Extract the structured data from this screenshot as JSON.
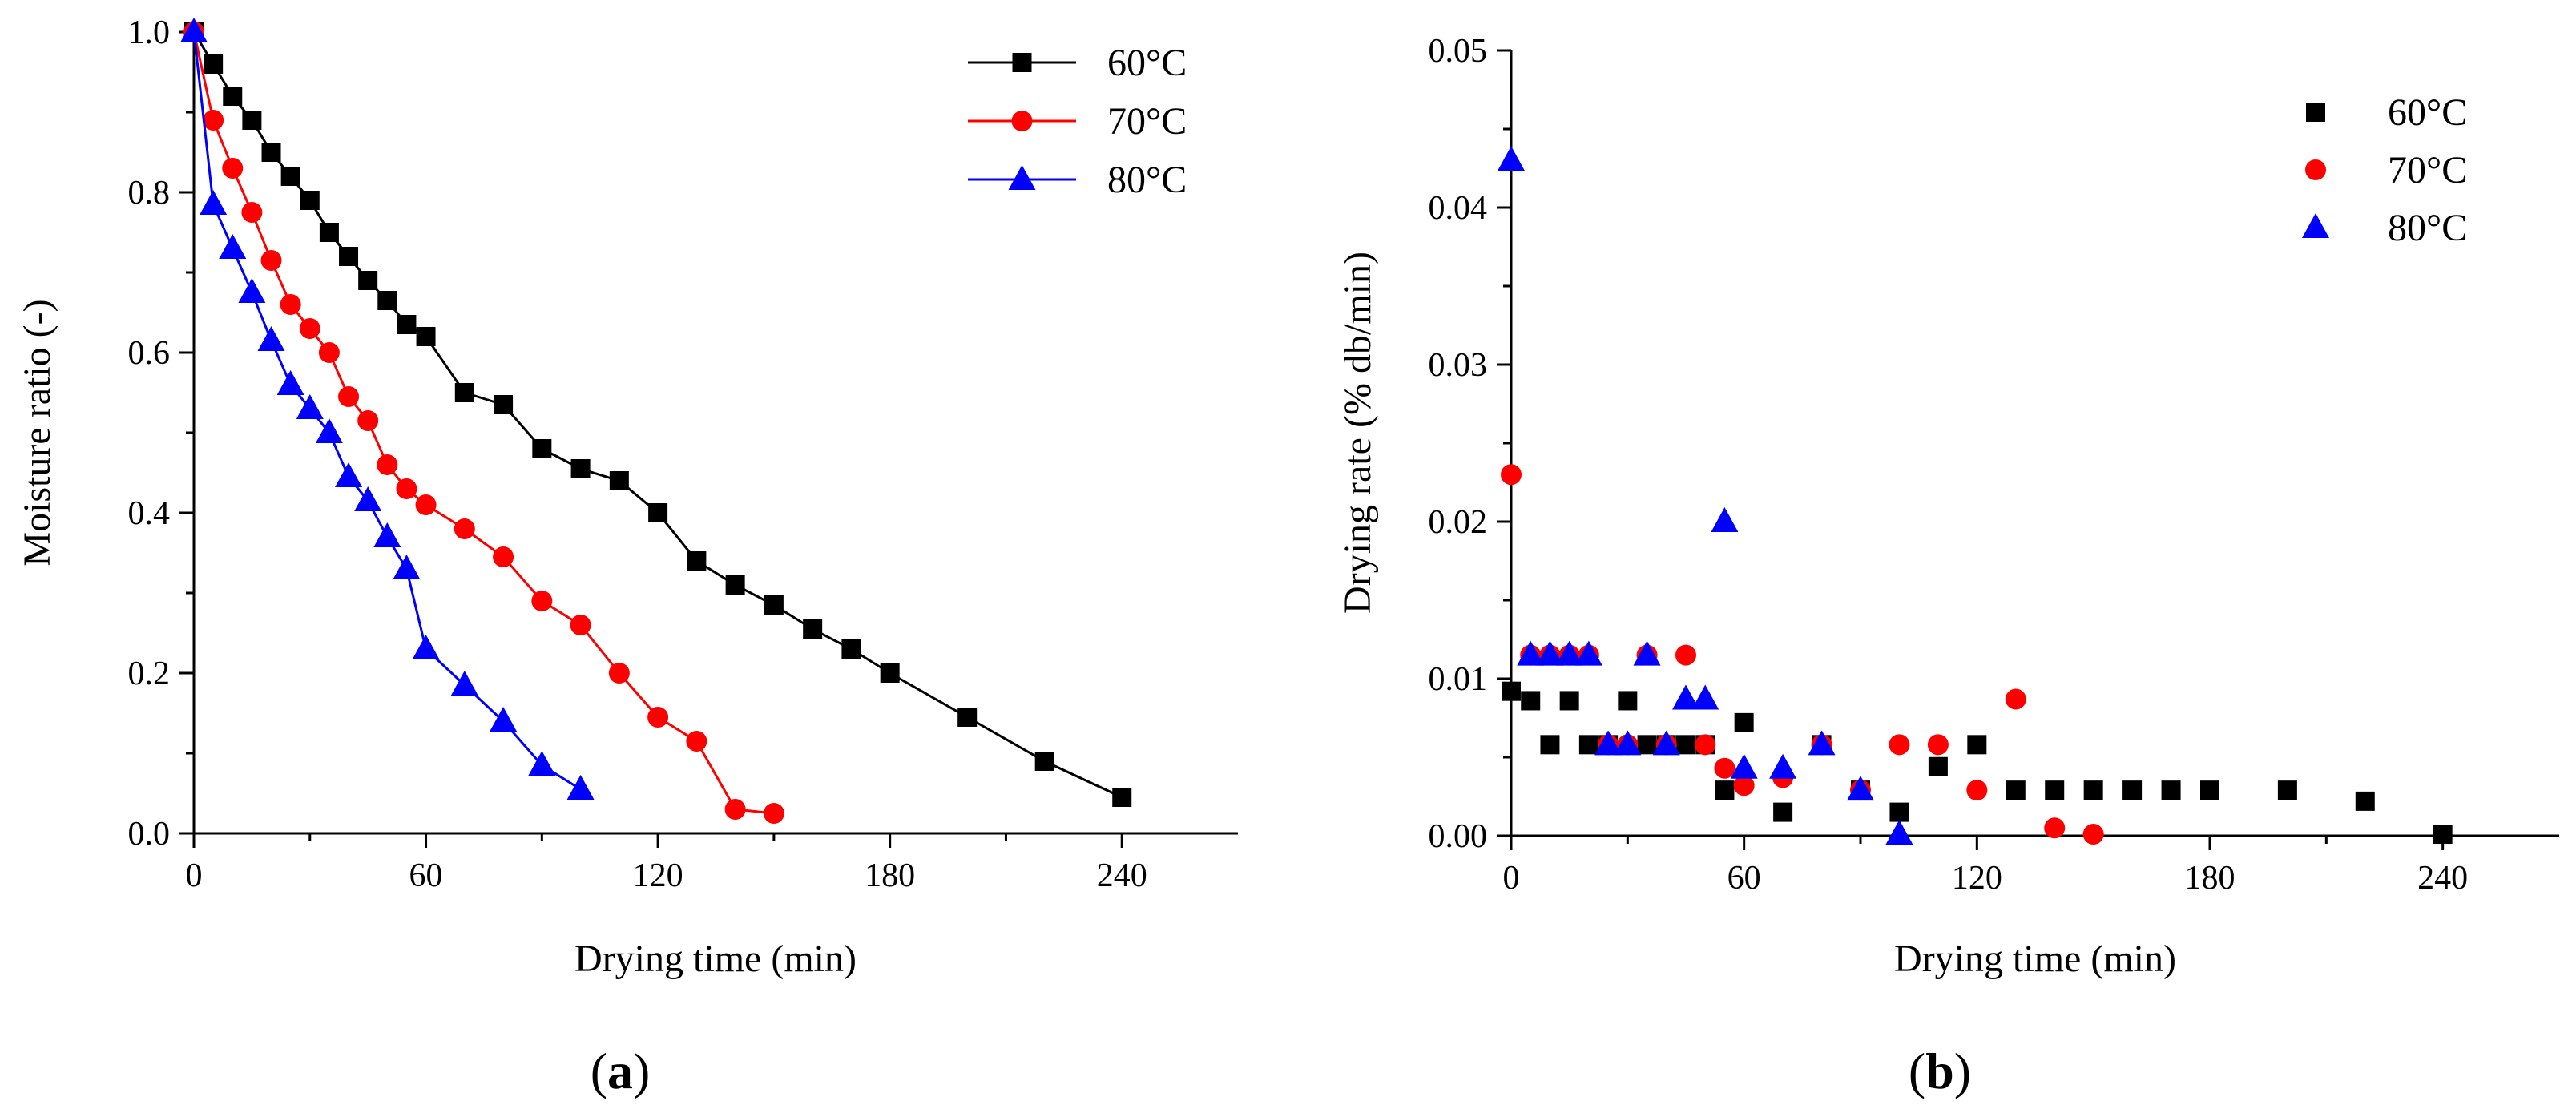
{
  "chart_data": [
    {
      "type": "line",
      "panel_label": {
        "open": "(",
        "letter": "a",
        "close": ")"
      },
      "xlabel": "Drying time (min)",
      "ylabel": "Moisture ratio (-)",
      "xlim": [
        0,
        270
      ],
      "ylim": [
        0,
        1.0
      ],
      "xticks": [
        0,
        60,
        120,
        180,
        240
      ],
      "xtick_labels": [
        "0",
        "60",
        "120",
        "180",
        "240"
      ],
      "yticks": [
        0,
        0.2,
        0.4,
        0.6,
        0.8,
        1.0
      ],
      "ytick_labels": [
        "0.0",
        "0.2",
        "0.4",
        "0.6",
        "0.8",
        "1.0"
      ],
      "legend_position": "top-right",
      "series": [
        {
          "name": "60°C",
          "color": "#000000",
          "marker": "square",
          "x": [
            0,
            5,
            10,
            15,
            20,
            25,
            30,
            35,
            40,
            45,
            50,
            55,
            60,
            70,
            80,
            90,
            100,
            110,
            120,
            130,
            140,
            150,
            160,
            170,
            180,
            200,
            220,
            240
          ],
          "y": [
            1.0,
            0.96,
            0.92,
            0.89,
            0.85,
            0.82,
            0.79,
            0.75,
            0.72,
            0.69,
            0.665,
            0.635,
            0.62,
            0.55,
            0.535,
            0.48,
            0.455,
            0.44,
            0.4,
            0.34,
            0.31,
            0.285,
            0.255,
            0.23,
            0.2,
            0.145,
            0.09,
            0.045
          ]
        },
        {
          "name": "70°C",
          "color": "#ff0000",
          "marker": "circle",
          "x": [
            0,
            5,
            10,
            15,
            20,
            25,
            30,
            35,
            40,
            45,
            50,
            55,
            60,
            70,
            80,
            90,
            100,
            110,
            120,
            130,
            140,
            150
          ],
          "y": [
            1.0,
            0.89,
            0.83,
            0.775,
            0.715,
            0.66,
            0.63,
            0.6,
            0.545,
            0.515,
            0.46,
            0.43,
            0.41,
            0.38,
            0.345,
            0.29,
            0.26,
            0.2,
            0.145,
            0.115,
            0.03,
            0.025
          ]
        },
        {
          "name": "80°C",
          "color": "#0000ff",
          "marker": "triangle",
          "x": [
            0,
            5,
            10,
            15,
            20,
            25,
            30,
            35,
            40,
            45,
            50,
            55,
            60,
            70,
            80,
            90,
            100
          ],
          "y": [
            1.0,
            0.785,
            0.73,
            0.675,
            0.615,
            0.56,
            0.53,
            0.5,
            0.445,
            0.415,
            0.37,
            0.33,
            0.23,
            0.185,
            0.14,
            0.085,
            0.055
          ]
        }
      ]
    },
    {
      "type": "scatter",
      "panel_label": {
        "open": "(",
        "letter": "b",
        "close": ")"
      },
      "xlabel": "Drying time (min)",
      "ylabel": "Drying rate (% db/min)",
      "xlim": [
        0,
        270
      ],
      "ylim": [
        0,
        0.05
      ],
      "xticks": [
        0,
        60,
        120,
        180,
        240
      ],
      "xtick_labels": [
        "0",
        "60",
        "120",
        "180",
        "240"
      ],
      "yticks": [
        0,
        0.01,
        0.02,
        0.03,
        0.04,
        0.05
      ],
      "ytick_labels": [
        "0.00",
        "0.01",
        "0.02",
        "0.03",
        "0.04",
        "0.05"
      ],
      "legend_position": "top-right",
      "series": [
        {
          "name": "60°C",
          "color": "#000000",
          "marker": "square",
          "x": [
            0,
            5,
            10,
            15,
            20,
            25,
            30,
            35,
            40,
            45,
            50,
            55,
            60,
            70,
            80,
            90,
            100,
            110,
            120,
            130,
            140,
            150,
            160,
            170,
            180,
            200,
            220,
            240
          ],
          "y": [
            0.0092,
            0.0086,
            0.0058,
            0.0086,
            0.0058,
            0.0058,
            0.0086,
            0.0058,
            0.0058,
            0.0058,
            0.0058,
            0.0029,
            0.0072,
            0.0015,
            0.0058,
            0.0029,
            0.0015,
            0.0044,
            0.0058,
            0.0029,
            0.0029,
            0.0029,
            0.0029,
            0.0029,
            0.0029,
            0.0029,
            0.0022,
            0.0001
          ]
        },
        {
          "name": "70°C",
          "color": "#ff0000",
          "marker": "circle",
          "x": [
            0,
            5,
            10,
            15,
            20,
            25,
            30,
            35,
            40,
            45,
            50,
            55,
            60,
            70,
            80,
            90,
            100,
            110,
            120,
            130,
            140,
            150
          ],
          "y": [
            0.023,
            0.0115,
            0.0115,
            0.0115,
            0.0115,
            0.0058,
            0.0058,
            0.0115,
            0.0058,
            0.0115,
            0.0058,
            0.0043,
            0.0032,
            0.0037,
            0.0058,
            0.0029,
            0.0058,
            0.0058,
            0.0029,
            0.0087,
            0.0005,
            0.0001
          ]
        },
        {
          "name": "80°C",
          "color": "#0000ff",
          "marker": "triangle",
          "x": [
            0,
            5,
            10,
            15,
            20,
            25,
            30,
            35,
            40,
            45,
            50,
            55,
            60,
            70,
            80,
            90,
            100
          ],
          "y": [
            0.043,
            0.0115,
            0.0115,
            0.0115,
            0.0115,
            0.0058,
            0.0058,
            0.0115,
            0.0058,
            0.0087,
            0.0087,
            0.02,
            0.0043,
            0.0043,
            0.0058,
            0.0029,
            0.0001
          ]
        }
      ]
    }
  ]
}
